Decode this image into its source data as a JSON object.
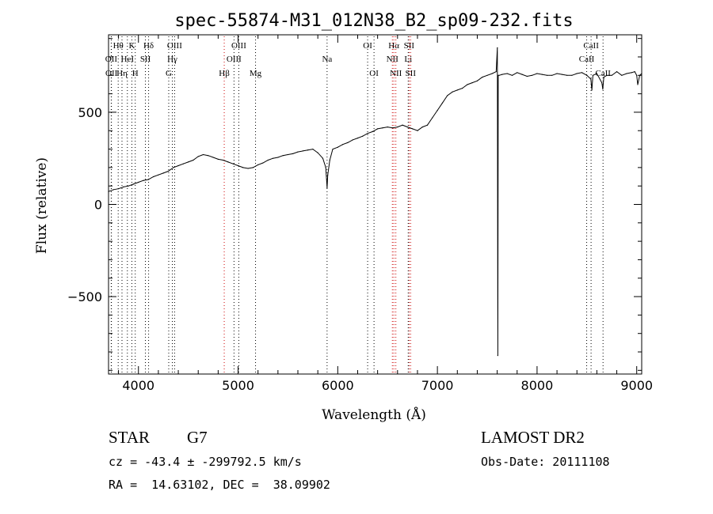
{
  "chart_data": {
    "type": "line",
    "title": "spec-55874-M31_012N38_B2_sp09-232.fits",
    "xlabel": "Wavelength (Å)",
    "ylabel": "Flux (relative)",
    "xlim": [
      3700,
      9050
    ],
    "ylim": [
      -920,
      920
    ],
    "xticks": [
      4000,
      5000,
      6000,
      7000,
      8000,
      9000
    ],
    "yticks": [
      -500,
      0,
      500
    ],
    "series": [
      {
        "x": [
          3700,
          3750,
          3800,
          3850,
          3900,
          3950,
          4000,
          4050,
          4100,
          4150,
          4200,
          4250,
          4300,
          4350,
          4400,
          4450,
          4500,
          4550,
          4600,
          4650,
          4700,
          4750,
          4800,
          4850,
          4900,
          4950,
          5000,
          5050,
          5100,
          5150,
          5200,
          5250,
          5300,
          5350,
          5400,
          5450,
          5500,
          5550,
          5600,
          5650,
          5700,
          5750,
          5800,
          5850,
          5880,
          5893,
          5900,
          5920,
          5950,
          6000,
          6050,
          6100,
          6150,
          6200,
          6250,
          6300,
          6350,
          6400,
          6450,
          6500,
          6550,
          6600,
          6650,
          6700,
          6750,
          6800,
          6850,
          6900,
          6950,
          7000,
          7050,
          7100,
          7150,
          7200,
          7250,
          7300,
          7350,
          7400,
          7450,
          7500,
          7550,
          7590,
          7602,
          7606,
          7610,
          7620,
          7650,
          7700,
          7750,
          7800,
          7850,
          7900,
          7950,
          8000,
          8050,
          8100,
          8150,
          8200,
          8250,
          8300,
          8350,
          8400,
          8450,
          8500,
          8540,
          8550,
          8560,
          8600,
          8650,
          8660,
          8670,
          8700,
          8750,
          8800,
          8850,
          8900,
          8950,
          8980,
          9000,
          9010,
          9030,
          9050
        ],
        "y": [
          70,
          80,
          85,
          95,
          100,
          110,
          120,
          130,
          135,
          150,
          160,
          170,
          180,
          200,
          210,
          220,
          230,
          240,
          260,
          270,
          265,
          255,
          245,
          240,
          230,
          220,
          210,
          200,
          195,
          200,
          215,
          225,
          240,
          250,
          255,
          265,
          270,
          275,
          285,
          290,
          295,
          300,
          280,
          250,
          200,
          90,
          160,
          240,
          300,
          310,
          325,
          335,
          350,
          360,
          370,
          385,
          395,
          410,
          415,
          420,
          415,
          420,
          430,
          420,
          410,
          400,
          420,
          430,
          470,
          510,
          550,
          590,
          610,
          620,
          630,
          650,
          660,
          670,
          690,
          700,
          710,
          720,
          850,
          -820,
          700,
          700,
          705,
          710,
          700,
          715,
          705,
          695,
          700,
          710,
          705,
          700,
          700,
          710,
          705,
          700,
          700,
          710,
          715,
          700,
          680,
          620,
          700,
          710,
          660,
          625,
          690,
          700,
          700,
          720,
          700,
          710,
          715,
          720,
          700,
          650,
          700,
          710
        ]
      }
    ],
    "lines": [
      {
        "label": "Hθ",
        "x": 3797,
        "row": 0,
        "color": "#000000"
      },
      {
        "label": "K",
        "x": 3934,
        "row": 0,
        "color": "#000000"
      },
      {
        "label": "Hδ",
        "x": 4102,
        "row": 0,
        "color": "#000000"
      },
      {
        "label": "OIII",
        "x": 4363,
        "row": 0,
        "color": "#000000"
      },
      {
        "label": "OIII",
        "x": 5007,
        "row": 0,
        "color": "#000000"
      },
      {
        "label": "OI",
        "x": 6300,
        "row": 0,
        "color": "#000000"
      },
      {
        "label": "Hα",
        "x": 6563,
        "row": 0,
        "color": "#cc0000"
      },
      {
        "label": "SII",
        "x": 6716,
        "row": 0,
        "color": "#cc0000"
      },
      {
        "label": "CaII",
        "x": 8542,
        "row": 0,
        "color": "#000000"
      },
      {
        "label": "OII",
        "x": 3727,
        "row": 1,
        "color": "#000000"
      },
      {
        "label": "HeI",
        "x": 3889,
        "row": 1,
        "color": "#000000"
      },
      {
        "label": "SII",
        "x": 4070,
        "row": 1,
        "color": "#000000"
      },
      {
        "label": "Hγ",
        "x": 4340,
        "row": 1,
        "color": "#000000"
      },
      {
        "label": "OIII",
        "x": 4959,
        "row": 1,
        "color": "#000000"
      },
      {
        "label": "NII",
        "x": 6548,
        "row": 1,
        "color": "#cc0000"
      },
      {
        "label": "Li",
        "x": 6707,
        "row": 1,
        "color": "#000000"
      },
      {
        "label": "CaII",
        "x": 8498,
        "row": 1,
        "color": "#000000"
      },
      {
        "label": "OII",
        "x": 3729,
        "row": 2,
        "color": "#000000"
      },
      {
        "label": "Hη",
        "x": 3835,
        "row": 2,
        "color": "#000000"
      },
      {
        "label": "H",
        "x": 3968,
        "row": 2,
        "color": "#000000"
      },
      {
        "label": "G",
        "x": 4304,
        "row": 2,
        "color": "#000000"
      },
      {
        "label": "Hβ",
        "x": 4861,
        "row": 2,
        "color": "#cc0000"
      },
      {
        "label": "Mg",
        "x": 5175,
        "row": 2,
        "color": "#000000"
      },
      {
        "label": "Na",
        "x": 5893,
        "row": 1,
        "color": "#000000"
      },
      {
        "label": "OI",
        "x": 6364,
        "row": 2,
        "color": "#000000"
      },
      {
        "label": "NII",
        "x": 6583,
        "row": 2,
        "color": "#cc0000"
      },
      {
        "label": "SII",
        "x": 6731,
        "row": 2,
        "color": "#cc0000"
      },
      {
        "label": "CaII",
        "x": 8662,
        "row": 2,
        "color": "#000000"
      }
    ]
  },
  "footer": {
    "object_class": "STAR",
    "subclass": "G7",
    "survey": "LAMOST DR2",
    "cz_line": "cz = -43.4 ± -299792.5 km/s",
    "obs_date": "Obs-Date: 20111108",
    "coords": "RA =  14.63102, DEC =  38.09902"
  }
}
